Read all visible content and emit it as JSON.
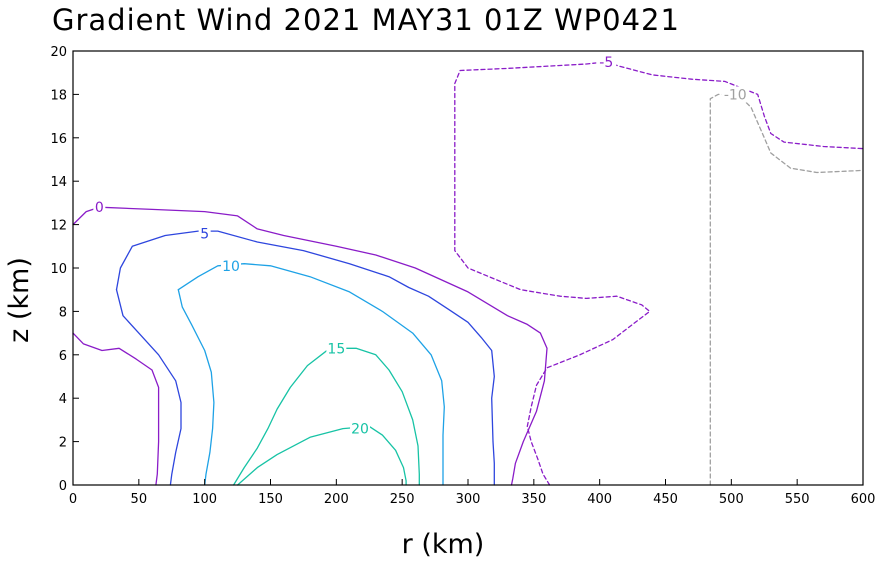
{
  "chart_data": {
    "type": "contour",
    "title": "Gradient Wind 2021 MAY31 01Z  WP0421",
    "xlabel": "r (km)",
    "ylabel": "z (km)",
    "xlim": [
      0,
      600
    ],
    "ylim": [
      0,
      20
    ],
    "xticks": [
      0,
      50,
      100,
      150,
      200,
      250,
      300,
      350,
      400,
      450,
      500,
      550,
      600
    ],
    "yticks": [
      0,
      2,
      4,
      6,
      8,
      10,
      12,
      14,
      16,
      18,
      20
    ],
    "grid": false,
    "contours": [
      {
        "level": 0,
        "label": "0",
        "color": "#8a1cc8",
        "dashed": false,
        "label_at": [
          20,
          12.8
        ],
        "points": [
          [
            0,
            12.0
          ],
          [
            10,
            12.6
          ],
          [
            20,
            12.8
          ],
          [
            60,
            12.7
          ],
          [
            100,
            12.6
          ],
          [
            125,
            12.4
          ],
          [
            140,
            11.8
          ],
          [
            160,
            11.5
          ],
          [
            200,
            11.0
          ],
          [
            230,
            10.6
          ],
          [
            260,
            10.0
          ],
          [
            300,
            8.9
          ],
          [
            330,
            7.8
          ],
          [
            345,
            7.4
          ],
          [
            355,
            7.0
          ],
          [
            360,
            6.3
          ],
          [
            358,
            4.8
          ],
          [
            352,
            3.4
          ],
          [
            342,
            2.0
          ],
          [
            336,
            1.0
          ],
          [
            334,
            0.3
          ],
          [
            333,
            0
          ]
        ]
      },
      {
        "level": 0,
        "label": "",
        "color": "#8a1cc8",
        "dashed": false,
        "points": [
          [
            0,
            7.0
          ],
          [
            8,
            6.5
          ],
          [
            22,
            6.2
          ],
          [
            35,
            6.3
          ],
          [
            48,
            5.8
          ],
          [
            60,
            5.3
          ],
          [
            65,
            4.5
          ],
          [
            65,
            2.0
          ],
          [
            64,
            0.5
          ],
          [
            63,
            0
          ]
        ]
      },
      {
        "level": 5,
        "label": "5",
        "color": "#2e46de",
        "dashed": false,
        "label_at": [
          100,
          11.6
        ],
        "points": [
          [
            33,
            9.0
          ],
          [
            36,
            10.0
          ],
          [
            45,
            11.0
          ],
          [
            70,
            11.5
          ],
          [
            95,
            11.7
          ],
          [
            110,
            11.7
          ],
          [
            140,
            11.2
          ],
          [
            175,
            10.8
          ],
          [
            210,
            10.2
          ],
          [
            240,
            9.6
          ],
          [
            255,
            9.1
          ],
          [
            270,
            8.7
          ],
          [
            285,
            8.1
          ],
          [
            300,
            7.5
          ],
          [
            310,
            6.8
          ],
          [
            318,
            6.2
          ],
          [
            320,
            5.0
          ],
          [
            318,
            4.0
          ],
          [
            319,
            2.0
          ],
          [
            320,
            1.0
          ],
          [
            320,
            0
          ]
        ]
      },
      {
        "level": 5,
        "label": "",
        "color": "#2e46de",
        "dashed": false,
        "points": [
          [
            33,
            9.0
          ],
          [
            38,
            7.8
          ],
          [
            50,
            7.0
          ],
          [
            65,
            6.0
          ],
          [
            78,
            4.8
          ],
          [
            82,
            3.8
          ],
          [
            82,
            2.6
          ],
          [
            78,
            1.5
          ],
          [
            75,
            0.5
          ],
          [
            74,
            0
          ]
        ]
      },
      {
        "level": 10,
        "label": "10",
        "color": "#1ea2e6",
        "dashed": false,
        "label_at": [
          120,
          10.1
        ],
        "points": [
          [
            80,
            9.0
          ],
          [
            95,
            9.6
          ],
          [
            110,
            10.1
          ],
          [
            130,
            10.2
          ],
          [
            150,
            10.1
          ],
          [
            180,
            9.6
          ],
          [
            210,
            8.9
          ],
          [
            235,
            8.0
          ],
          [
            258,
            7.0
          ],
          [
            272,
            6.0
          ],
          [
            280,
            4.8
          ],
          [
            282,
            3.6
          ],
          [
            281,
            2.3
          ],
          [
            281,
            1.2
          ],
          [
            281,
            0
          ]
        ]
      },
      {
        "level": 10,
        "label": "",
        "color": "#1ea2e6",
        "dashed": false,
        "points": [
          [
            80,
            9.0
          ],
          [
            83,
            8.2
          ],
          [
            90,
            7.4
          ],
          [
            100,
            6.2
          ],
          [
            105,
            5.2
          ],
          [
            107,
            3.8
          ],
          [
            106,
            2.6
          ],
          [
            104,
            1.5
          ],
          [
            101,
            0.5
          ],
          [
            100,
            0
          ]
        ]
      },
      {
        "level": 15,
        "label": "15",
        "color": "#17c3a5",
        "dashed": false,
        "label_at": [
          200,
          6.3
        ],
        "points": [
          [
            122,
            0
          ],
          [
            130,
            0.8
          ],
          [
            140,
            1.7
          ],
          [
            148,
            2.6
          ],
          [
            155,
            3.5
          ],
          [
            165,
            4.5
          ],
          [
            178,
            5.5
          ],
          [
            195,
            6.3
          ],
          [
            215,
            6.3
          ],
          [
            230,
            6.0
          ],
          [
            240,
            5.3
          ],
          [
            250,
            4.3
          ],
          [
            258,
            3.0
          ],
          [
            262,
            1.8
          ],
          [
            263,
            0.5
          ],
          [
            263,
            0
          ]
        ]
      },
      {
        "level": 20,
        "label": "20",
        "color": "#17c3a5",
        "dashed": false,
        "label_at": [
          218,
          2.6
        ],
        "points": [
          [
            125,
            0
          ],
          [
            140,
            0.8
          ],
          [
            155,
            1.4
          ],
          [
            180,
            2.2
          ],
          [
            205,
            2.6
          ],
          [
            225,
            2.7
          ],
          [
            235,
            2.3
          ],
          [
            245,
            1.6
          ],
          [
            251,
            0.8
          ],
          [
            253,
            0.2
          ],
          [
            253,
            0
          ]
        ]
      },
      {
        "level": -5,
        "label": "-5",
        "color": "#8a1cc8",
        "dashed": true,
        "label_at": [
          405,
          19.5
        ],
        "points": [
          [
            362,
            0
          ],
          [
            357,
            0.5
          ],
          [
            353,
            1.2
          ],
          [
            348,
            2.0
          ],
          [
            345,
            2.7
          ],
          [
            348,
            3.6
          ],
          [
            352,
            4.6
          ],
          [
            360,
            5.4
          ],
          [
            385,
            6.0
          ],
          [
            410,
            6.7
          ],
          [
            425,
            7.4
          ],
          [
            438,
            8.0
          ],
          [
            432,
            8.3
          ],
          [
            413,
            8.7
          ],
          [
            390,
            8.6
          ],
          [
            370,
            8.7
          ],
          [
            340,
            9.0
          ],
          [
            320,
            9.5
          ],
          [
            300,
            10.0
          ],
          [
            290,
            10.8
          ],
          [
            290,
            12.0
          ],
          [
            290,
            15.0
          ],
          [
            290,
            18.5
          ],
          [
            294,
            19.1
          ],
          [
            330,
            19.2
          ],
          [
            390,
            19.4
          ],
          [
            405,
            19.5
          ],
          [
            415,
            19.3
          ],
          [
            440,
            18.9
          ],
          [
            470,
            18.7
          ],
          [
            495,
            18.6
          ],
          [
            520,
            18.0
          ],
          [
            525,
            17.0
          ],
          [
            530,
            16.2
          ],
          [
            540,
            15.8
          ],
          [
            570,
            15.6
          ],
          [
            600,
            15.5
          ]
        ]
      },
      {
        "level": -10,
        "label": "-10",
        "color": "#a0a0a0",
        "dashed": true,
        "label_at": [
          503,
          18.0
        ],
        "points": [
          [
            484,
            0
          ],
          [
            484,
            8.0
          ],
          [
            484,
            14.0
          ],
          [
            484,
            17.8
          ],
          [
            490,
            18.0
          ],
          [
            505,
            18.0
          ],
          [
            515,
            17.4
          ],
          [
            525,
            16.0
          ],
          [
            530,
            15.3
          ],
          [
            545,
            14.6
          ],
          [
            565,
            14.4
          ],
          [
            600,
            14.5
          ]
        ]
      }
    ]
  }
}
